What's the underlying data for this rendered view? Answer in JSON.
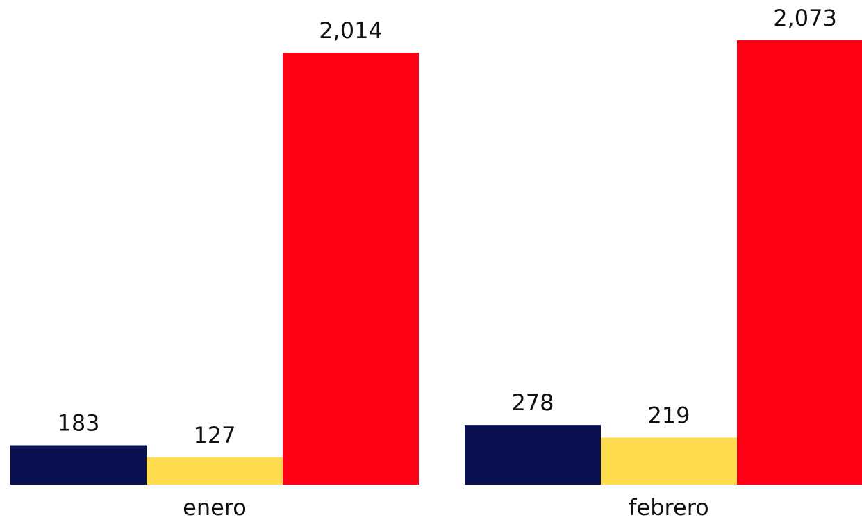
{
  "chart_data": {
    "type": "bar",
    "categories": [
      "enero",
      "febrero"
    ],
    "series": [
      {
        "color": "#0b1150",
        "values": [
          183,
          278
        ]
      },
      {
        "color": "#ffdd4f",
        "values": [
          127,
          219
        ]
      },
      {
        "color": "#ff0015",
        "values": [
          2014,
          2073
        ],
        "value_labels": [
          "2,014",
          "2,073"
        ]
      }
    ]
  }
}
